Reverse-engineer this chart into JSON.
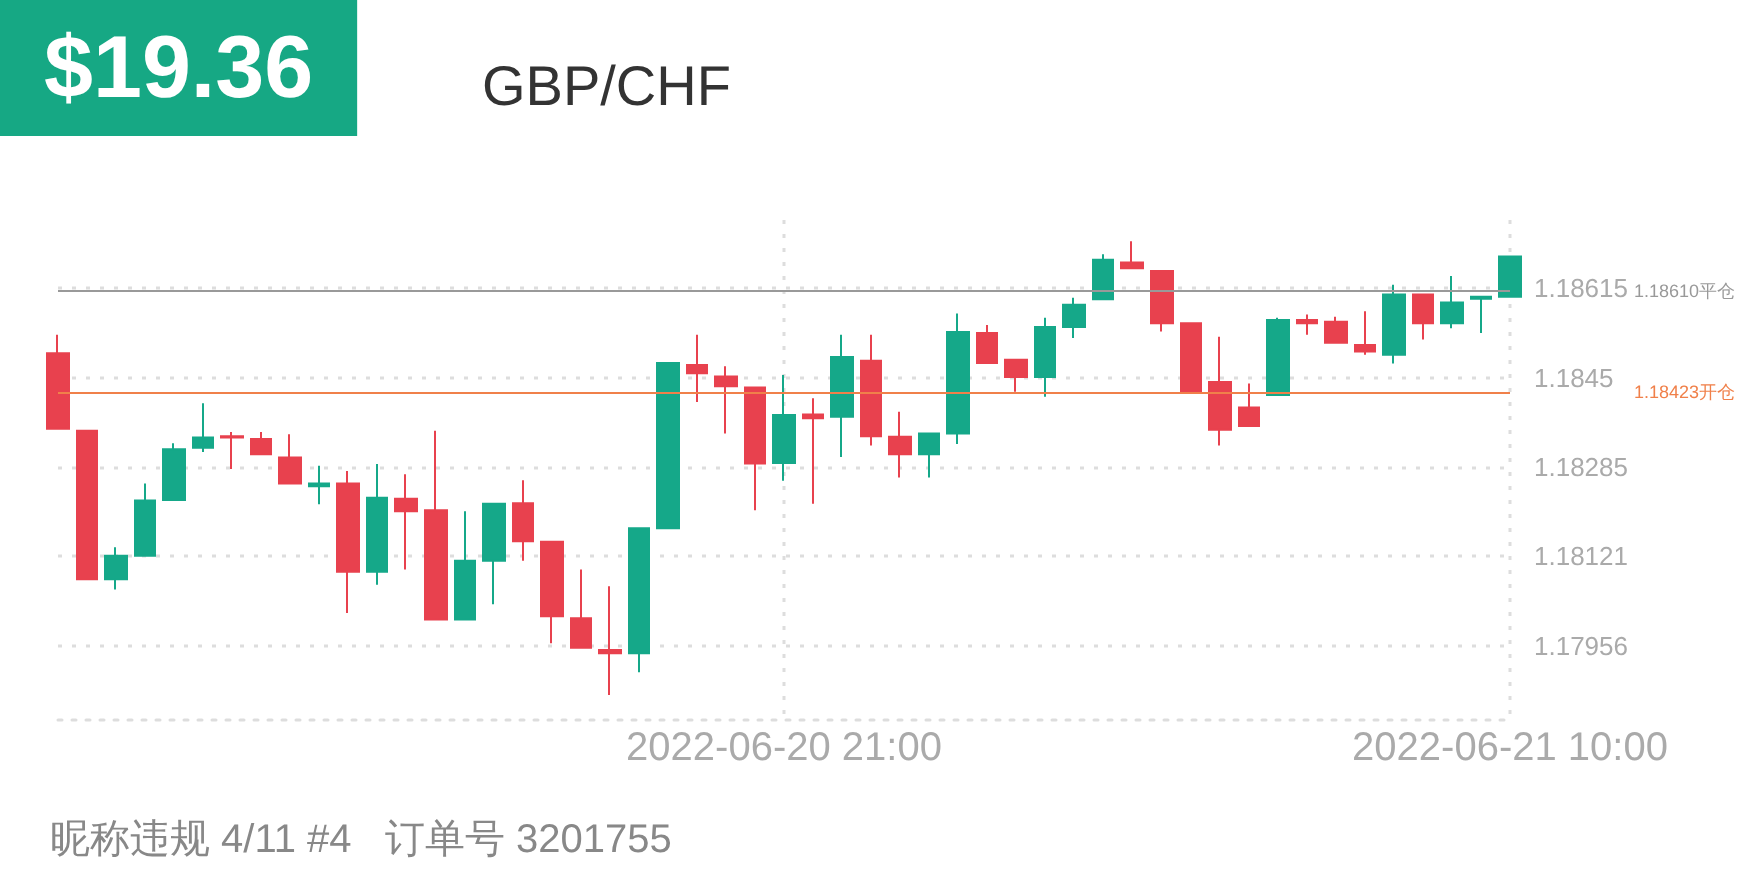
{
  "chart_data": {
    "type": "candlestick",
    "title": "GBP/CHF",
    "annotations": [
      "$19.36",
      "昵称违规 4/11 #4   订单号 3201755"
    ],
    "categories": [
      null,
      null,
      null,
      null,
      null,
      null,
      null,
      null,
      null,
      null,
      null,
      null,
      null,
      null,
      null,
      null,
      null,
      null,
      null,
      null,
      null,
      null,
      null,
      null,
      null,
      "2022-06-20 21:00",
      null,
      null,
      null,
      null,
      null,
      null,
      null,
      null,
      null,
      null,
      null,
      null,
      null,
      null,
      null,
      null,
      null,
      null,
      null,
      null,
      null,
      null,
      null,
      null,
      "2022-06-21 10:00"
    ],
    "ohlc": [
      [
        1.18495,
        1.18529,
        1.18356,
        1.18356
      ],
      [
        1.18352,
        1.18352,
        1.18079,
        1.18079
      ],
      [
        1.18079,
        1.18138,
        1.1806,
        1.18122
      ],
      [
        1.18122,
        1.18255,
        1.18122,
        1.18224
      ],
      [
        1.18225,
        1.18329,
        1.18225,
        1.18318
      ],
      [
        1.18321,
        1.18403,
        1.18313,
        1.1834
      ],
      [
        1.18342,
        1.1835,
        1.18282,
        1.1834
      ],
      [
        1.18337,
        1.1835,
        1.18309,
        1.18309
      ],
      [
        1.18303,
        1.18346,
        1.18255,
        1.18255
      ],
      [
        1.1825,
        1.18288,
        1.18217,
        1.18255
      ],
      [
        1.18255,
        1.18278,
        1.18017,
        1.18093
      ],
      [
        1.18093,
        1.18291,
        1.18069,
        1.18229
      ],
      [
        1.18227,
        1.18272,
        1.18097,
        1.18204
      ],
      [
        1.18206,
        1.18352,
        1.18005,
        1.18005
      ],
      [
        1.18005,
        1.18204,
        1.18005,
        1.18113
      ],
      [
        1.18113,
        1.18218,
        1.18033,
        1.18218
      ],
      [
        1.18219,
        1.18261,
        1.18113,
        1.18149
      ],
      [
        1.18148,
        1.18148,
        1.17961,
        1.18011
      ],
      [
        1.18007,
        1.18097,
        1.17953,
        1.17953
      ],
      [
        1.17949,
        1.18066,
        1.17866,
        1.17943
      ],
      [
        1.17943,
        1.18173,
        1.17908,
        1.18173
      ],
      [
        1.18173,
        1.18477,
        1.18173,
        1.18477
      ],
      [
        1.18473,
        1.18529,
        1.18405,
        1.18458
      ],
      [
        1.18452,
        1.18471,
        1.18347,
        1.18434
      ],
      [
        1.18432,
        1.18432,
        1.18206,
        1.18292
      ],
      [
        1.18293,
        1.18455,
        1.1826,
        1.18381
      ],
      [
        1.18382,
        1.18412,
        1.18218,
        1.18375
      ],
      [
        1.18378,
        1.18529,
        1.18304,
        1.18488
      ],
      [
        1.18481,
        1.18529,
        1.18325,
        1.18342
      ],
      [
        1.18341,
        1.18387,
        1.18266,
        1.18309
      ],
      [
        1.18309,
        1.18347,
        1.18266,
        1.18347
      ],
      [
        1.18347,
        1.18568,
        1.18328,
        1.18534
      ],
      [
        1.18532,
        1.18547,
        1.18477,
        1.18477
      ],
      [
        1.18483,
        1.18483,
        1.18424,
        1.18451
      ],
      [
        1.18451,
        1.1856,
        1.18415,
        1.18543
      ],
      [
        1.18543,
        1.18597,
        1.18523,
        1.18584
      ],
      [
        1.18594,
        1.18677,
        1.18594,
        1.18667
      ],
      [
        1.18662,
        1.18701,
        1.18651,
        1.18651
      ],
      [
        1.18646,
        1.18646,
        1.18535,
        1.1855
      ],
      [
        1.1855,
        1.1855,
        1.18424,
        1.18424
      ],
      [
        1.18442,
        1.18525,
        1.18325,
        1.18354
      ],
      [
        1.18395,
        1.18439,
        1.18361,
        1.18361
      ],
      [
        1.18418,
        1.1856,
        1.18418,
        1.18556
      ],
      [
        1.18556,
        1.18566,
        1.18529,
        1.1855
      ],
      [
        1.18553,
        1.18562,
        1.18514,
        1.18514
      ],
      [
        1.1851,
        1.18572,
        1.18492,
        1.18498
      ],
      [
        1.18492,
        1.18621,
        1.18476,
        1.18603
      ],
      [
        1.18603,
        1.18603,
        1.1852,
        1.1855
      ],
      [
        1.1855,
        1.18637,
        1.18541,
        1.18588
      ],
      [
        1.18595,
        1.18599,
        1.18532,
        1.18599
      ],
      [
        1.18599,
        1.18673,
        1.18599,
        1.18673
      ]
    ],
    "colors": [
      "#e8414e",
      "#e8414e",
      "#15a889",
      "#15a889",
      "#15a889",
      "#15a889",
      "#e8414e",
      "#e8414e",
      "#e8414e",
      "#15a889",
      "#e8414e",
      "#15a889",
      "#e8414e",
      "#e8414e",
      "#15a889",
      "#15a889",
      "#e8414e",
      "#e8414e",
      "#e8414e",
      "#e8414e",
      "#15a889",
      "#15a889",
      "#e8414e",
      "#e8414e",
      "#e8414e",
      "#15a889",
      "#e8414e",
      "#15a889",
      "#e8414e",
      "#e8414e",
      "#15a889",
      "#15a889",
      "#e8414e",
      "#e8414e",
      "#15a889",
      "#15a889",
      "#15a889",
      "#e8414e",
      "#e8414e",
      "#e8414e",
      "#e8414e",
      "#e8414e",
      "#15a889",
      "#e8414e",
      "#e8414e",
      "#e8414e",
      "#15a889",
      "#e8414e",
      "#15a889",
      "#15a889",
      "#15a889"
    ],
    "ylim": [
      1.1782,
      1.1874
    ],
    "yticks": [
      1.17956,
      1.18121,
      1.18285,
      1.1845,
      1.18615
    ],
    "grid": true,
    "ref_lines": [
      {
        "axis": "y",
        "value": 1.1861,
        "label": "1.18610平仓",
        "color": "#999999"
      },
      {
        "axis": "y",
        "value": 1.18423,
        "label": "1.18423开仓",
        "color": "#f0804a"
      }
    ]
  }
}
